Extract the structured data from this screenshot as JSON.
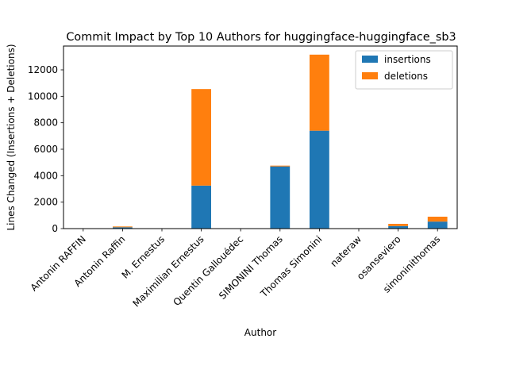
{
  "chart_data": {
    "type": "bar",
    "stacked": true,
    "title": "Commit Impact by Top 10 Authors for huggingface-huggingface_sb3",
    "xlabel": "Author",
    "ylabel": "Lines Changed (Insertions + Deletions)",
    "ylim": [
      0,
      13800
    ],
    "yticks": [
      0,
      2000,
      4000,
      6000,
      8000,
      10000,
      12000
    ],
    "grid": false,
    "legend_position": "top-right",
    "categories": [
      "Antonin RAFFIN",
      "Antonin Raffin",
      "M. Ernestus",
      "Maximilian Ernestus",
      "Quentin Gallouédec",
      "SIMONINI Thomas",
      "Thomas Simonini",
      "nateraw",
      "osanseviero",
      "simoninithomas"
    ],
    "series": [
      {
        "name": "insertions",
        "color": "#1f77b4",
        "values": [
          2,
          100,
          3,
          3250,
          2,
          4700,
          7400,
          3,
          190,
          530
        ]
      },
      {
        "name": "deletions",
        "color": "#ff7f0e",
        "values": [
          1,
          60,
          2,
          7300,
          1,
          60,
          5750,
          2,
          170,
          370
        ]
      }
    ]
  }
}
